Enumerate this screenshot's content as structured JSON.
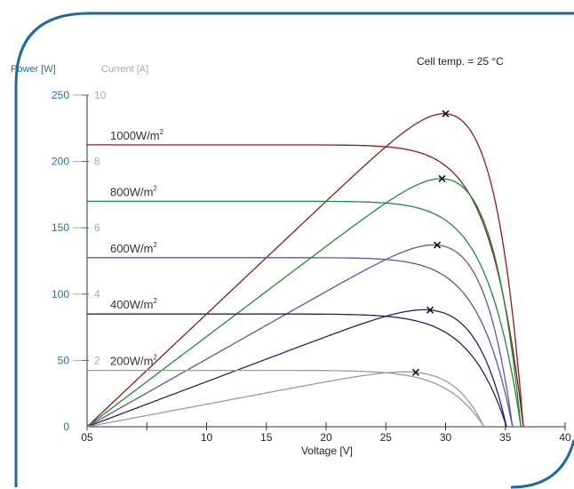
{
  "chart_data": {
    "type": "line",
    "xlabel": "Voltage [V]",
    "ylabel_left": "Power [W]",
    "ylabel_right": "Current [A]",
    "annotation": "Cell temp. = 25 °C",
    "xlim": [
      0,
      40
    ],
    "power_lim": [
      0,
      250
    ],
    "current_lim": [
      0,
      10
    ],
    "x_ticks": [
      {
        "value": 0,
        "label": "05"
      },
      {
        "value": 5,
        "label": ""
      },
      {
        "value": 10,
        "label": "10"
      },
      {
        "value": 15,
        "label": "15"
      },
      {
        "value": 20,
        "label": "20"
      },
      {
        "value": 25,
        "label": "25"
      },
      {
        "value": 30,
        "label": "30"
      },
      {
        "value": 35,
        "label": "35"
      },
      {
        "value": 40,
        "label": "40"
      }
    ],
    "power_ticks": [
      {
        "value": 0,
        "label": "0"
      },
      {
        "value": 50,
        "label": "50"
      },
      {
        "value": 100,
        "label": "100"
      },
      {
        "value": 150,
        "label": "150"
      },
      {
        "value": 200,
        "label": "200"
      },
      {
        "value": 250,
        "label": "250"
      }
    ],
    "current_ticks": [
      {
        "value": 2,
        "label": "2"
      },
      {
        "value": 4,
        "label": "4"
      },
      {
        "value": 6,
        "label": "6"
      },
      {
        "value": 8,
        "label": "8"
      },
      {
        "value": 10,
        "label": "10"
      }
    ],
    "series": [
      {
        "irradiance": "1000W/m",
        "sup": "2",
        "color": "#8b1a1a",
        "isc": 8.5,
        "voc": 36.5,
        "vmp": 30.0,
        "pmax": 236
      },
      {
        "irradiance": "800W/m",
        "sup": "2",
        "color": "#1e8a3c",
        "isc": 6.8,
        "voc": 36.3,
        "vmp": 29.7,
        "pmax": 187
      },
      {
        "irradiance": "600W/m",
        "sup": "2",
        "color": "#5a55a8",
        "isc": 5.1,
        "voc": 35.6,
        "vmp": 29.3,
        "pmax": 137
      },
      {
        "irradiance": "400W/m",
        "sup": "2",
        "color": "#1f2266",
        "isc": 3.4,
        "voc": 35.1,
        "vmp": 28.7,
        "pmax": 88
      },
      {
        "irradiance": "200W/m",
        "sup": "2",
        "color": "#9a9a9a",
        "isc": 1.7,
        "voc": 33.2,
        "vmp": 27.5,
        "pmax": 41
      }
    ],
    "colors": {
      "power_axis": "#2a6ea0",
      "current_axis": "#a8a8a8",
      "border": "#1e6a9a"
    }
  }
}
